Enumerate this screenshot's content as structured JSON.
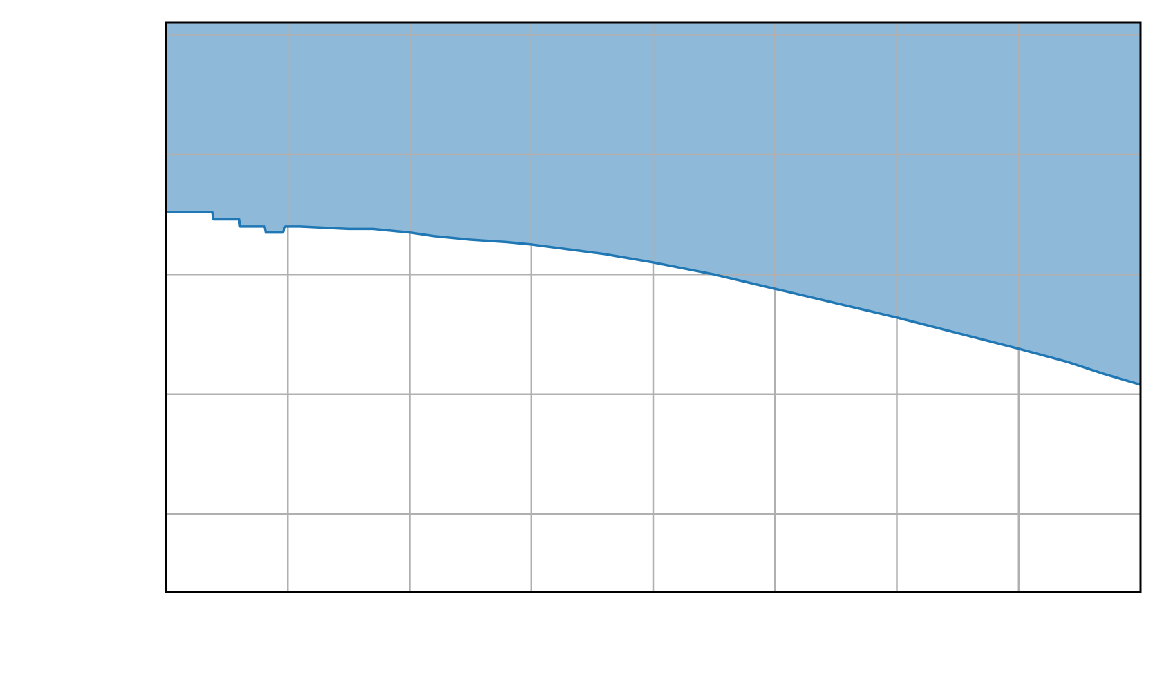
{
  "chart_data": {
    "type": "area",
    "title": "",
    "xlabel": "",
    "ylabel": "",
    "xlim": [
      0,
      8
    ],
    "ylim": [
      0,
      4.75
    ],
    "grid": true,
    "x_gridlines": [
      1,
      2,
      3,
      4,
      5,
      6,
      7
    ],
    "y_gridlines": [
      0.65,
      1.65,
      2.65,
      3.65,
      4.65
    ],
    "fill_direction": "above-line",
    "colors": {
      "line": "#1f77b4",
      "fill": "#8fb9d9",
      "grid": "#b0b0b0",
      "frame": "#000000"
    },
    "series": [
      {
        "x": [
          0,
          0.38,
          0.39,
          0.6,
          0.61,
          0.81,
          0.82,
          0.96,
          0.98,
          1.1,
          1.3,
          1.5,
          1.7,
          2.0,
          2.2,
          2.5,
          2.8,
          3.0,
          3.3,
          3.6,
          4.0,
          4.5,
          5.0,
          5.5,
          6.0,
          6.5,
          7.0,
          7.4,
          7.7,
          8.0
        ],
        "y": [
          3.17,
          3.17,
          3.11,
          3.11,
          3.05,
          3.05,
          3.0,
          3.0,
          3.05,
          3.05,
          3.04,
          3.03,
          3.03,
          3.0,
          2.97,
          2.94,
          2.92,
          2.9,
          2.86,
          2.82,
          2.75,
          2.65,
          2.53,
          2.41,
          2.29,
          2.16,
          2.03,
          1.92,
          1.82,
          1.73
        ]
      }
    ]
  }
}
